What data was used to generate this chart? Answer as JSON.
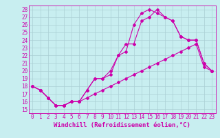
{
  "xlabel": "Windchill (Refroidissement éolien,°C)",
  "bg_color": "#c8eef0",
  "line_color": "#cc00aa",
  "xlim": [
    -0.5,
    23.5
  ],
  "ylim": [
    14.5,
    28.5
  ],
  "xticks": [
    0,
    1,
    2,
    3,
    4,
    5,
    6,
    7,
    8,
    9,
    10,
    11,
    12,
    13,
    14,
    15,
    16,
    17,
    18,
    19,
    20,
    21,
    22,
    23
  ],
  "yticks": [
    15,
    16,
    17,
    18,
    19,
    20,
    21,
    22,
    23,
    24,
    25,
    26,
    27,
    28
  ],
  "line1_x": [
    0,
    1,
    2,
    3,
    4,
    5,
    6,
    7,
    8,
    9,
    10,
    11,
    12,
    13,
    14,
    15,
    16,
    17,
    18,
    19,
    20,
    21,
    22,
    23
  ],
  "line1_y": [
    18.0,
    17.5,
    16.5,
    15.5,
    15.5,
    16.0,
    16.0,
    17.5,
    19.0,
    19.0,
    19.5,
    22.0,
    22.5,
    26.0,
    27.5,
    28.0,
    27.5,
    27.0,
    26.5,
    24.5,
    24.0,
    24.0,
    21.0,
    20.0
  ],
  "line2_x": [
    0,
    1,
    2,
    3,
    4,
    5,
    6,
    7,
    8,
    9,
    10,
    11,
    12,
    13,
    14,
    15,
    16,
    17,
    18,
    19,
    20,
    21,
    22,
    23
  ],
  "line2_y": [
    18.0,
    17.5,
    16.5,
    15.5,
    15.5,
    16.0,
    16.0,
    17.5,
    19.0,
    19.0,
    20.0,
    22.0,
    23.5,
    23.5,
    26.5,
    27.0,
    28.0,
    27.0,
    26.5,
    24.5,
    24.0,
    24.0,
    21.0,
    20.0
  ],
  "line3_x": [
    0,
    1,
    2,
    3,
    4,
    5,
    6,
    7,
    8,
    9,
    10,
    11,
    12,
    13,
    14,
    15,
    16,
    17,
    18,
    19,
    20,
    21,
    22,
    23
  ],
  "line3_y": [
    18.0,
    17.5,
    16.5,
    15.5,
    15.5,
    16.0,
    16.0,
    16.5,
    17.0,
    17.5,
    18.0,
    18.5,
    19.0,
    19.5,
    20.0,
    20.5,
    21.0,
    21.5,
    22.0,
    22.5,
    23.0,
    23.5,
    20.5,
    20.0
  ],
  "grid_color": "#aacfd4",
  "xlabel_fontsize": 6.5,
  "tick_fontsize": 5.5,
  "marker": "D",
  "markersize": 2.0,
  "linewidth": 0.8
}
